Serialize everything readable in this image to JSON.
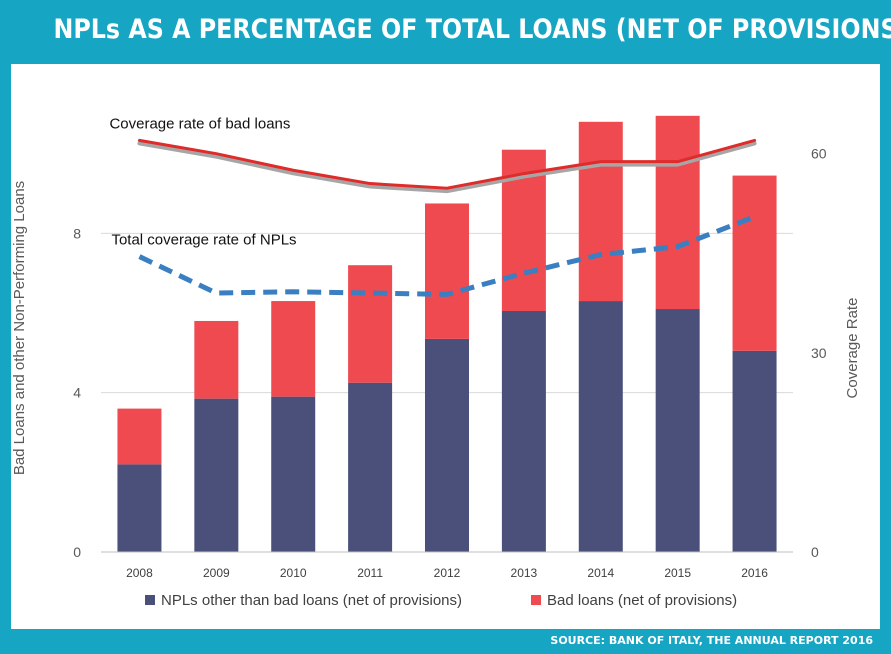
{
  "title": "NPLs AS A PERCENTAGE OF TOTAL LOANS (NET OF PROVISIONS)",
  "source": "SOURCE: BANK OF ITALY, THE ANNUAL REPORT 2016",
  "colors": {
    "background": "#16a6c4",
    "npl_other": "#4a5079",
    "bad_loans": "#ef4a50",
    "coverage_bad": "#e02b2b",
    "coverage_total": "#3a7fc1"
  },
  "chart_data": {
    "type": "bar",
    "stacked": true,
    "categories": [
      "2008",
      "2009",
      "2010",
      "2011",
      "2012",
      "2013",
      "2014",
      "2015",
      "2016"
    ],
    "ylabel": "Bad Loans and other Non-Performing Loans",
    "ylim": [
      0,
      12
    ],
    "yticks": [
      "0",
      "4",
      "8"
    ],
    "y2label": "Coverage Rate",
    "y2lim": [
      0,
      72
    ],
    "y2ticks": [
      "0",
      "30",
      "60"
    ],
    "grid": true,
    "legend_position": "bottom",
    "series": [
      {
        "name": "NPLs other than bad loans (net of provisions)",
        "values": [
          2.2,
          3.85,
          3.9,
          4.25,
          5.35,
          6.05,
          6.3,
          6.1,
          5.05
        ]
      },
      {
        "name": "Bad loans (net of provisions)",
        "values": [
          1.4,
          1.95,
          2.4,
          2.95,
          3.4,
          4.05,
          4.5,
          4.85,
          4.4
        ]
      }
    ],
    "lines": [
      {
        "name": "Coverage rate of bad loans",
        "values": [
          62,
          60,
          57.5,
          55.5,
          54.8,
          57,
          58.8,
          58.8,
          62
        ]
      },
      {
        "name": "Total coverage rate of NPLs",
        "values": [
          44.5,
          39,
          39.2,
          39,
          38.8,
          42,
          44.8,
          46,
          50.5
        ]
      }
    ]
  }
}
